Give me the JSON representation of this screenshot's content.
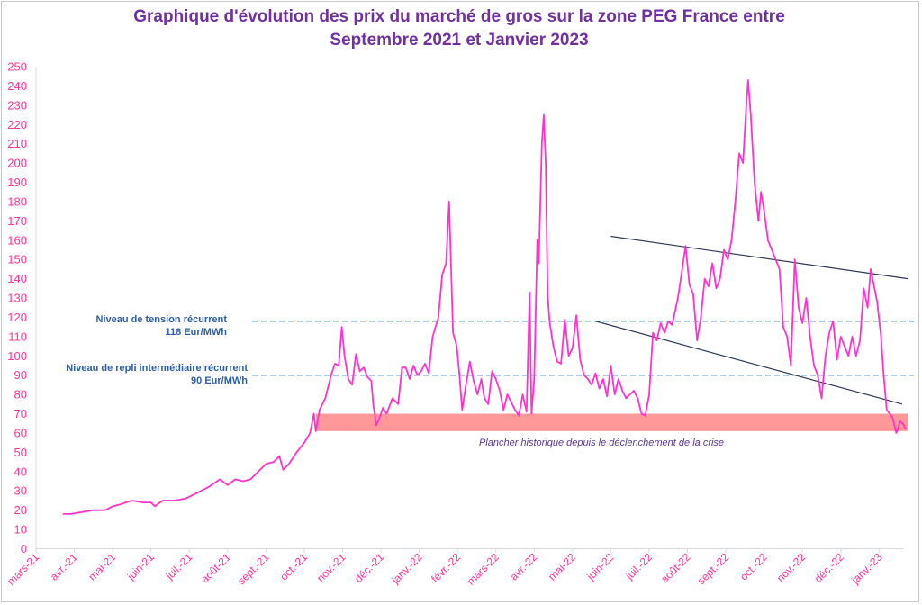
{
  "title_line1": "Graphique d'évolution des prix du marché de gros sur la zone PEG France entre",
  "title_line2": "Septembre 2021 et Janvier 2023",
  "annotations": {
    "tension_label": "Niveau de tension  récurrent",
    "tension_value": "118 Eur/MWh",
    "repli_label": "Niveau de repli intermédiaire récurrent",
    "repli_value": "90 Eur/MWh",
    "floor_label": "Plancher historique depuis le déclenchement de la crise"
  },
  "colors": {
    "line": "#ff33cc",
    "band": "#ff9999",
    "reference": "#2e75b6",
    "trend": "#2f3a5a",
    "ticks": "#ff3399",
    "title": "#7030a0"
  },
  "chart_data": {
    "type": "line",
    "title": "Graphique d'évolution des prix du marché de gros sur la zone PEG France entre Septembre 2021 et Janvier 2023",
    "xlabel": "",
    "ylabel": "",
    "ylim": [
      0,
      250
    ],
    "yticks": [
      0,
      10,
      20,
      30,
      40,
      50,
      60,
      70,
      80,
      90,
      100,
      110,
      120,
      130,
      140,
      150,
      160,
      170,
      180,
      190,
      200,
      210,
      220,
      230,
      240,
      250
    ],
    "grid": false,
    "legend": "none",
    "months": [
      "mars-21",
      "avr.-21",
      "mai-21",
      "juin-21",
      "juil.-21",
      "août-21",
      "sept.-21",
      "oct.-21",
      "nov.-21",
      "déc.-21",
      "janv.-22",
      "févr.-22",
      "mars-22",
      "avr.-22",
      "mai-22",
      "juin-22",
      "juil.-22",
      "août-22",
      "sept.-22",
      "oct.-22",
      "nov.-22",
      "déc.-22",
      "janv.-23"
    ],
    "series": [
      {
        "values": [
          [
            0.7,
            18
          ],
          [
            0.9,
            18
          ],
          [
            1.2,
            19
          ],
          [
            1.5,
            20
          ],
          [
            1.8,
            20
          ],
          [
            2.0,
            22
          ],
          [
            2.2,
            23
          ],
          [
            2.5,
            25
          ],
          [
            2.8,
            24
          ],
          [
            3.0,
            24
          ],
          [
            3.1,
            22
          ],
          [
            3.3,
            25
          ],
          [
            3.6,
            25
          ],
          [
            3.9,
            26
          ],
          [
            4.2,
            29
          ],
          [
            4.5,
            32
          ],
          [
            4.8,
            36
          ],
          [
            5.0,
            33
          ],
          [
            5.2,
            36
          ],
          [
            5.4,
            35
          ],
          [
            5.6,
            36
          ],
          [
            5.8,
            40
          ],
          [
            6.0,
            44
          ],
          [
            6.2,
            45
          ],
          [
            6.35,
            48
          ],
          [
            6.45,
            41
          ],
          [
            6.6,
            44
          ],
          [
            6.8,
            50
          ],
          [
            7.0,
            55
          ],
          [
            7.15,
            60
          ],
          [
            7.25,
            70
          ],
          [
            7.3,
            61
          ],
          [
            7.4,
            72
          ],
          [
            7.55,
            78
          ],
          [
            7.7,
            90
          ],
          [
            7.8,
            96
          ],
          [
            7.9,
            95
          ],
          [
            7.98,
            115
          ],
          [
            8.05,
            100
          ],
          [
            8.15,
            88
          ],
          [
            8.25,
            85
          ],
          [
            8.35,
            101
          ],
          [
            8.45,
            92
          ],
          [
            8.55,
            94
          ],
          [
            8.65,
            89
          ],
          [
            8.75,
            87
          ],
          [
            8.8,
            75
          ],
          [
            8.88,
            64
          ],
          [
            8.95,
            67
          ],
          [
            9.05,
            73
          ],
          [
            9.15,
            70
          ],
          [
            9.3,
            78
          ],
          [
            9.45,
            75
          ],
          [
            9.55,
            94
          ],
          [
            9.65,
            94
          ],
          [
            9.75,
            88
          ],
          [
            9.85,
            95
          ],
          [
            9.95,
            90
          ],
          [
            10.05,
            92
          ],
          [
            10.15,
            96
          ],
          [
            10.25,
            91
          ],
          [
            10.35,
            110
          ],
          [
            10.5,
            120
          ],
          [
            10.6,
            142
          ],
          [
            10.7,
            148
          ],
          [
            10.78,
            180
          ],
          [
            10.88,
            112
          ],
          [
            10.98,
            105
          ],
          [
            11.05,
            90
          ],
          [
            11.12,
            72
          ],
          [
            11.22,
            85
          ],
          [
            11.32,
            97
          ],
          [
            11.42,
            87
          ],
          [
            11.52,
            80
          ],
          [
            11.62,
            88
          ],
          [
            11.7,
            78
          ],
          [
            11.8,
            75
          ],
          [
            11.9,
            92
          ],
          [
            12.0,
            88
          ],
          [
            12.1,
            82
          ],
          [
            12.2,
            72
          ],
          [
            12.3,
            80
          ],
          [
            12.4,
            76
          ],
          [
            12.5,
            72
          ],
          [
            12.6,
            69
          ],
          [
            12.7,
            80
          ],
          [
            12.8,
            71
          ],
          [
            12.88,
            133
          ],
          [
            12.93,
            70
          ],
          [
            13.0,
            88
          ],
          [
            13.08,
            160
          ],
          [
            13.12,
            148
          ],
          [
            13.2,
            210
          ],
          [
            13.25,
            225
          ],
          [
            13.3,
            200
          ],
          [
            13.35,
            132
          ],
          [
            13.4,
            118
          ],
          [
            13.5,
            105
          ],
          [
            13.6,
            97
          ],
          [
            13.7,
            96
          ],
          [
            13.8,
            119
          ],
          [
            13.9,
            100
          ],
          [
            14.0,
            104
          ],
          [
            14.1,
            121
          ],
          [
            14.2,
            98
          ],
          [
            14.3,
            90
          ],
          [
            14.4,
            88
          ],
          [
            14.5,
            85
          ],
          [
            14.6,
            91
          ],
          [
            14.7,
            83
          ],
          [
            14.8,
            88
          ],
          [
            14.9,
            79
          ],
          [
            15.0,
            95
          ],
          [
            15.1,
            80
          ],
          [
            15.2,
            88
          ],
          [
            15.3,
            82
          ],
          [
            15.4,
            78
          ],
          [
            15.5,
            80
          ],
          [
            15.6,
            82
          ],
          [
            15.7,
            78
          ],
          [
            15.8,
            70
          ],
          [
            15.9,
            69
          ],
          [
            16.0,
            80
          ],
          [
            16.1,
            112
          ],
          [
            16.2,
            108
          ],
          [
            16.3,
            117
          ],
          [
            16.4,
            112
          ],
          [
            16.5,
            118
          ],
          [
            16.6,
            116
          ],
          [
            16.75,
            130
          ],
          [
            16.85,
            143
          ],
          [
            16.95,
            157
          ],
          [
            17.05,
            137
          ],
          [
            17.15,
            132
          ],
          [
            17.25,
            108
          ],
          [
            17.35,
            120
          ],
          [
            17.45,
            140
          ],
          [
            17.55,
            136
          ],
          [
            17.65,
            148
          ],
          [
            17.75,
            135
          ],
          [
            17.85,
            140
          ],
          [
            17.95,
            155
          ],
          [
            18.05,
            150
          ],
          [
            18.15,
            160
          ],
          [
            18.25,
            180
          ],
          [
            18.35,
            205
          ],
          [
            18.45,
            200
          ],
          [
            18.52,
            225
          ],
          [
            18.58,
            243
          ],
          [
            18.65,
            225
          ],
          [
            18.75,
            190
          ],
          [
            18.85,
            170
          ],
          [
            18.92,
            185
          ],
          [
            19.0,
            175
          ],
          [
            19.1,
            160
          ],
          [
            19.2,
            155
          ],
          [
            19.3,
            150
          ],
          [
            19.4,
            145
          ],
          [
            19.5,
            115
          ],
          [
            19.6,
            110
          ],
          [
            19.7,
            95
          ],
          [
            19.8,
            150
          ],
          [
            19.9,
            125
          ],
          [
            20.0,
            117
          ],
          [
            20.1,
            130
          ],
          [
            20.2,
            110
          ],
          [
            20.3,
            95
          ],
          [
            20.4,
            90
          ],
          [
            20.5,
            78
          ],
          [
            20.6,
            100
          ],
          [
            20.7,
            112
          ],
          [
            20.8,
            118
          ],
          [
            20.9,
            98
          ],
          [
            21.0,
            110
          ],
          [
            21.1,
            105
          ],
          [
            21.2,
            100
          ],
          [
            21.3,
            110
          ],
          [
            21.4,
            100
          ],
          [
            21.5,
            108
          ],
          [
            21.6,
            135
          ],
          [
            21.7,
            125
          ],
          [
            21.78,
            145
          ],
          [
            21.85,
            138
          ],
          [
            21.95,
            128
          ],
          [
            22.05,
            110
          ],
          [
            22.12,
            90
          ],
          [
            22.2,
            72
          ],
          [
            22.28,
            70
          ],
          [
            22.35,
            68
          ],
          [
            22.45,
            60
          ],
          [
            22.55,
            66
          ],
          [
            22.62,
            65
          ],
          [
            22.7,
            62
          ]
        ]
      }
    ],
    "reference_lines": [
      {
        "label": "Niveau de tension  récurrent",
        "value": 118
      },
      {
        "label": "Niveau de repli intermédiaire récurrent",
        "value": 90
      }
    ],
    "floor_band": {
      "label": "Plancher historique depuis le déclenchement de la crise",
      "range": [
        61,
        70
      ],
      "x_range": [
        7.3,
        22.75
      ]
    },
    "trend_lines": [
      {
        "from": [
          15.0,
          162
        ],
        "to": [
          22.75,
          140
        ]
      },
      {
        "from": [
          14.6,
          118
        ],
        "to": [
          22.6,
          75
        ]
      }
    ]
  }
}
